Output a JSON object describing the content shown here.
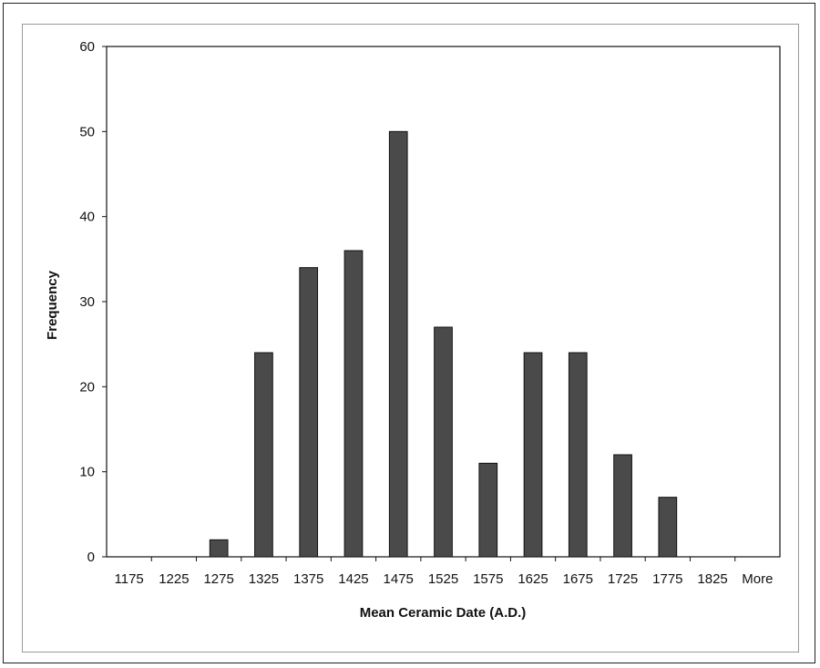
{
  "chart_data": {
    "type": "bar",
    "title": "",
    "xlabel": "Mean Ceramic Date (A.D.)",
    "ylabel": "Frequency",
    "ylim": [
      0,
      60
    ],
    "yticks": [
      0,
      10,
      20,
      30,
      40,
      50,
      60
    ],
    "categories": [
      "1175",
      "1225",
      "1275",
      "1325",
      "1375",
      "1425",
      "1475",
      "1525",
      "1575",
      "1625",
      "1675",
      "1725",
      "1775",
      "1825",
      "More"
    ],
    "values": [
      0,
      0,
      2,
      24,
      34,
      36,
      50,
      27,
      11,
      24,
      24,
      12,
      7,
      0,
      0
    ],
    "grid": false,
    "legend": "none",
    "bar_color": "#4a4a4a"
  }
}
